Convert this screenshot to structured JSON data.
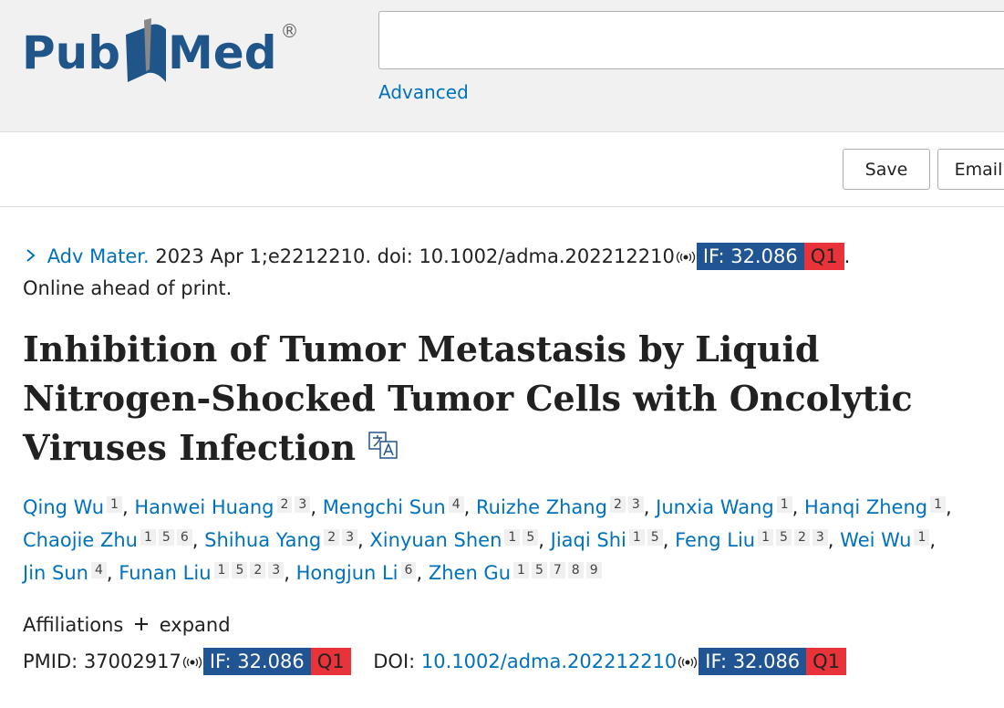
{
  "header": {
    "logo_left": "Pub",
    "logo_right": "Med",
    "logo_mark": "®",
    "advanced": "Advanced"
  },
  "actions": [
    "Save",
    "Email"
  ],
  "citation": {
    "journal": "Adv Mater.",
    "details": "2023 Apr 1;e2212210. doi: 10.1002/adma.202212210",
    "impact": "IF: 32.086",
    "quartile": "Q1",
    "end": ".",
    "status": "Online ahead of print."
  },
  "title": "Inhibition of Tumor Metastasis by Liquid Nitrogen-Shocked Tumor Cells with Oncolytic Viruses Infection",
  "separator": ",",
  "authors": [
    {
      "name": "Qing Wu",
      "affs": [
        1
      ]
    },
    {
      "name": "Hanwei Huang",
      "affs": [
        2,
        3
      ]
    },
    {
      "name": "Mengchi Sun",
      "affs": [
        4
      ]
    },
    {
      "name": "Ruizhe Zhang",
      "affs": [
        2,
        3
      ]
    },
    {
      "name": "Junxia Wang",
      "affs": [
        1
      ]
    },
    {
      "name": "Hanqi Zheng",
      "affs": [
        1
      ]
    },
    {
      "name": "Chaojie Zhu",
      "affs": [
        1,
        5,
        6
      ]
    },
    {
      "name": "Shihua Yang",
      "affs": [
        2,
        3
      ]
    },
    {
      "name": "Xinyuan Shen",
      "affs": [
        1,
        5
      ]
    },
    {
      "name": "Jiaqi Shi",
      "affs": [
        1,
        5
      ]
    },
    {
      "name": "Feng Liu",
      "affs": [
        1,
        5,
        2,
        3
      ]
    },
    {
      "name": "Wei Wu",
      "affs": [
        1
      ]
    },
    {
      "name": "Jin Sun",
      "affs": [
        4
      ]
    },
    {
      "name": "Funan Liu",
      "affs": [
        1,
        5,
        2,
        3
      ]
    },
    {
      "name": "Hongjun Li",
      "affs": [
        6
      ]
    },
    {
      "name": "Zhen Gu",
      "affs": [
        1,
        5,
        7,
        8,
        9
      ]
    }
  ],
  "affiliations": {
    "label": "Affiliations",
    "expand": "expand"
  },
  "ids": {
    "pmid_label": "PMID:",
    "pmid": "37002917",
    "pmid_impact": "IF: 32.086",
    "pmid_quartile": "Q1",
    "doi_label": "DOI:",
    "doi": "10.1002/adma.202212210",
    "doi_impact": "IF: 32.086",
    "doi_quartile": "Q1"
  }
}
